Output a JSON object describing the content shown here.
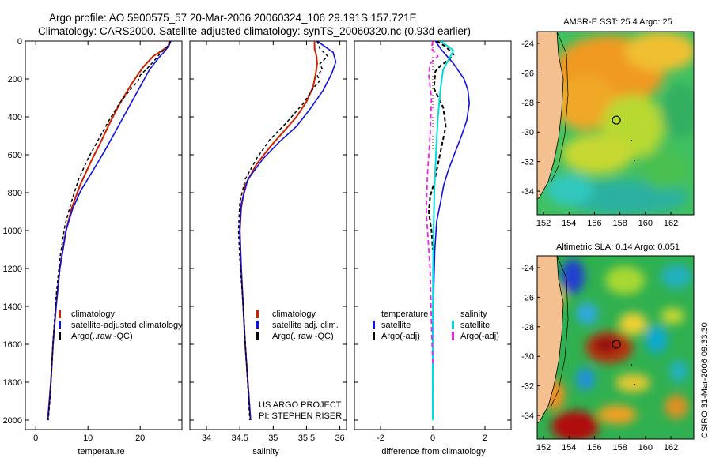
{
  "header": {
    "line1": "Argo profile: AO 5900575_57 20-Mar-2006 20060324_106 29.191S 157.721E",
    "line2": "Climatology: CARS2000. Satellite-adjusted climatology: synTS_20060320.nc (0.93d earlier)"
  },
  "colors": {
    "climatology": "#cc2200",
    "satellite": "#1010e0",
    "argo": "#000000",
    "sal_sat": "#00dddd",
    "sal_argo": "#ee22ee"
  },
  "chart_data": [
    {
      "type": "line",
      "name": "temperature-profile",
      "xlabel": "temperature",
      "xlim": [
        -2,
        28
      ],
      "ylim": [
        0,
        2050
      ],
      "xticks": [
        0,
        10,
        20
      ],
      "yticks": [
        0,
        200,
        400,
        600,
        800,
        1000,
        1200,
        1400,
        1600,
        1800,
        2000
      ],
      "legend": [
        "climatology",
        "satellite-adjusted climatology",
        "Argo(..raw -QC)"
      ],
      "series": [
        {
          "name": "climatology",
          "color": "#cc2200",
          "width": 2,
          "x": [
            25.6,
            25.4,
            24.2,
            22.5,
            20.5,
            18.5,
            16.3,
            14.4,
            12.5,
            10.5,
            8.5,
            6.9,
            5.8,
            4.6,
            3.9,
            3.3,
            2.9,
            2.6,
            2.3
          ],
          "y": [
            0,
            25,
            50,
            80,
            140,
            220,
            320,
            420,
            530,
            640,
            760,
            880,
            1000,
            1200,
            1400,
            1600,
            1800,
            1900,
            2000
          ]
        },
        {
          "name": "satellite-adjusted climatology",
          "color": "#1010e0",
          "width": 1.6,
          "x": [
            25.9,
            25.5,
            24.8,
            23.5,
            21.8,
            20.0,
            18.0,
            15.6,
            13.2,
            10.8,
            8.6,
            7.0,
            5.8,
            4.6,
            3.9,
            3.3,
            2.9,
            2.6,
            2.3
          ],
          "y": [
            0,
            25,
            50,
            90,
            150,
            240,
            340,
            460,
            580,
            690,
            790,
            890,
            1000,
            1200,
            1400,
            1600,
            1800,
            1900,
            2000
          ]
        },
        {
          "name": "Argo(..raw -QC)",
          "color": "#000000",
          "width": 1.5,
          "dash": "4,3",
          "x": [
            25.8,
            25.2,
            24.0,
            22.8,
            21.5,
            20.0,
            19.6,
            18.0,
            16.0,
            14.0,
            12.0,
            10.0,
            8.2,
            6.8,
            5.6,
            4.6,
            3.9,
            3.4,
            3.0,
            2.7,
            2.4
          ],
          "y": [
            0,
            30,
            60,
            100,
            140,
            180,
            210,
            260,
            330,
            420,
            520,
            620,
            730,
            850,
            970,
            1150,
            1350,
            1550,
            1750,
            1900,
            2000
          ]
        }
      ]
    },
    {
      "type": "line",
      "name": "salinity-profile",
      "xlabel": "salinity",
      "xlim": [
        33.75,
        36.1
      ],
      "ylim": [
        0,
        2050
      ],
      "xticks": [
        34,
        34.5,
        35,
        35.5,
        36
      ],
      "legend": [
        "climatology",
        "satellite adj. clim.",
        "Argo(..raw -QC)"
      ],
      "annotation": [
        "US ARGO PROJECT",
        "PI: STEPHEN RISER"
      ],
      "series": [
        {
          "name": "climatology",
          "color": "#cc2200",
          "width": 2,
          "x": [
            35.62,
            35.62,
            35.65,
            35.66,
            35.64,
            35.6,
            35.5,
            35.35,
            35.15,
            34.95,
            34.75,
            34.58,
            34.52,
            34.5,
            34.52,
            34.55,
            34.58,
            34.62,
            34.66
          ],
          "y": [
            0,
            40,
            80,
            120,
            170,
            240,
            320,
            400,
            480,
            560,
            650,
            760,
            880,
            1000,
            1200,
            1400,
            1600,
            1800,
            2000
          ]
        },
        {
          "name": "satellite adj. clim.",
          "color": "#1010e0",
          "width": 1.6,
          "x": [
            35.66,
            35.78,
            35.9,
            35.94,
            35.88,
            35.75,
            35.55,
            35.35,
            35.1,
            34.85,
            34.62,
            34.52,
            34.5,
            34.52,
            34.55,
            34.58,
            34.62,
            34.66
          ],
          "y": [
            0,
            30,
            60,
            110,
            170,
            260,
            360,
            450,
            530,
            620,
            730,
            860,
            1000,
            1200,
            1400,
            1600,
            1800,
            2000
          ]
        },
        {
          "name": "Argo(..raw -QC)",
          "color": "#000000",
          "width": 1.5,
          "dash": "4,3",
          "x": [
            35.66,
            35.7,
            35.82,
            35.7,
            35.74,
            35.66,
            35.7,
            35.62,
            35.45,
            35.2,
            34.95,
            34.75,
            34.58,
            34.5,
            34.48,
            34.5,
            34.55,
            34.6,
            34.65
          ],
          "y": [
            0,
            40,
            80,
            120,
            150,
            180,
            210,
            240,
            330,
            430,
            520,
            620,
            730,
            850,
            1000,
            1150,
            1400,
            1700,
            2000
          ]
        }
      ]
    },
    {
      "type": "line",
      "name": "difference-profile",
      "xlabel": "difference from climatology",
      "xlim": [
        -3,
        3
      ],
      "ylim": [
        0,
        2050
      ],
      "xticks": [
        -2,
        0,
        2
      ],
      "legend_titles": [
        "temperature",
        "salinity"
      ],
      "legend": [
        "satellite",
        "Argo(-adj)",
        "satellite",
        "Argo(-adj)"
      ],
      "series": [
        {
          "name": "temperature satellite",
          "color": "#1010e0",
          "width": 1.6,
          "x": [
            0.1,
            0.3,
            0.55,
            0.8,
            1.0,
            1.2,
            1.35,
            1.4,
            1.3,
            1.1,
            0.85,
            0.6,
            0.42,
            0.3,
            0.15,
            0.08,
            0.04,
            0.02,
            0.0
          ],
          "y": [
            0,
            40,
            80,
            120,
            160,
            200,
            260,
            330,
            420,
            500,
            590,
            680,
            760,
            850,
            950,
            1100,
            1300,
            1600,
            2000
          ]
        },
        {
          "name": "temperature Argo(-adj)",
          "color": "#000000",
          "width": 2,
          "dash": "5,3",
          "x": [
            0.15,
            0.5,
            0.8,
            0.6,
            0.3,
            0.1,
            0.05,
            0.4,
            0.5,
            0.35,
            0.2,
            0.05,
            -0.1,
            -0.15,
            -0.05,
            0.0
          ],
          "y": [
            0,
            30,
            70,
            100,
            130,
            160,
            250,
            350,
            450,
            550,
            650,
            750,
            820,
            900,
            1000,
            1100
          ]
        },
        {
          "name": "salinity satellite",
          "color": "#00dddd",
          "width": 2,
          "x": [
            0.3,
            0.8,
            0.6,
            0.4,
            0.3,
            0.2,
            0.12,
            0.06,
            0.03,
            0.01,
            0.0,
            0.0
          ],
          "y": [
            0,
            50,
            100,
            150,
            250,
            400,
            600,
            800,
            1000,
            1200,
            1500,
            2000
          ]
        },
        {
          "name": "salinity Argo(-adj)",
          "color": "#ee22ee",
          "width": 1.8,
          "dash": "6,4",
          "x": [
            0.0,
            -0.05,
            0.2,
            -0.1,
            -0.15,
            -0.05,
            -0.1,
            -0.2,
            -0.25,
            -0.2,
            -0.15,
            -0.1,
            -0.05,
            0.0
          ],
          "y": [
            0,
            40,
            80,
            120,
            180,
            300,
            500,
            700,
            900,
            1000,
            1100,
            1200,
            1500,
            1700
          ]
        }
      ]
    }
  ],
  "maps": {
    "sst": {
      "title": "AMSR-E SST: 25.4 Argo: 25"
    },
    "sla": {
      "title": "Altimetric SLA: 0.14 Argo: 0.051"
    },
    "lon_ticks": [
      "152",
      "154",
      "156",
      "158",
      "160",
      "162"
    ],
    "lat_ticks": [
      "-24",
      "-26",
      "-28",
      "-30",
      "-32",
      "-34"
    ],
    "float_lon": 157.72,
    "float_lat": -29.19
  },
  "credit": "CSIRO 31-Mar-2006 09:33:30"
}
